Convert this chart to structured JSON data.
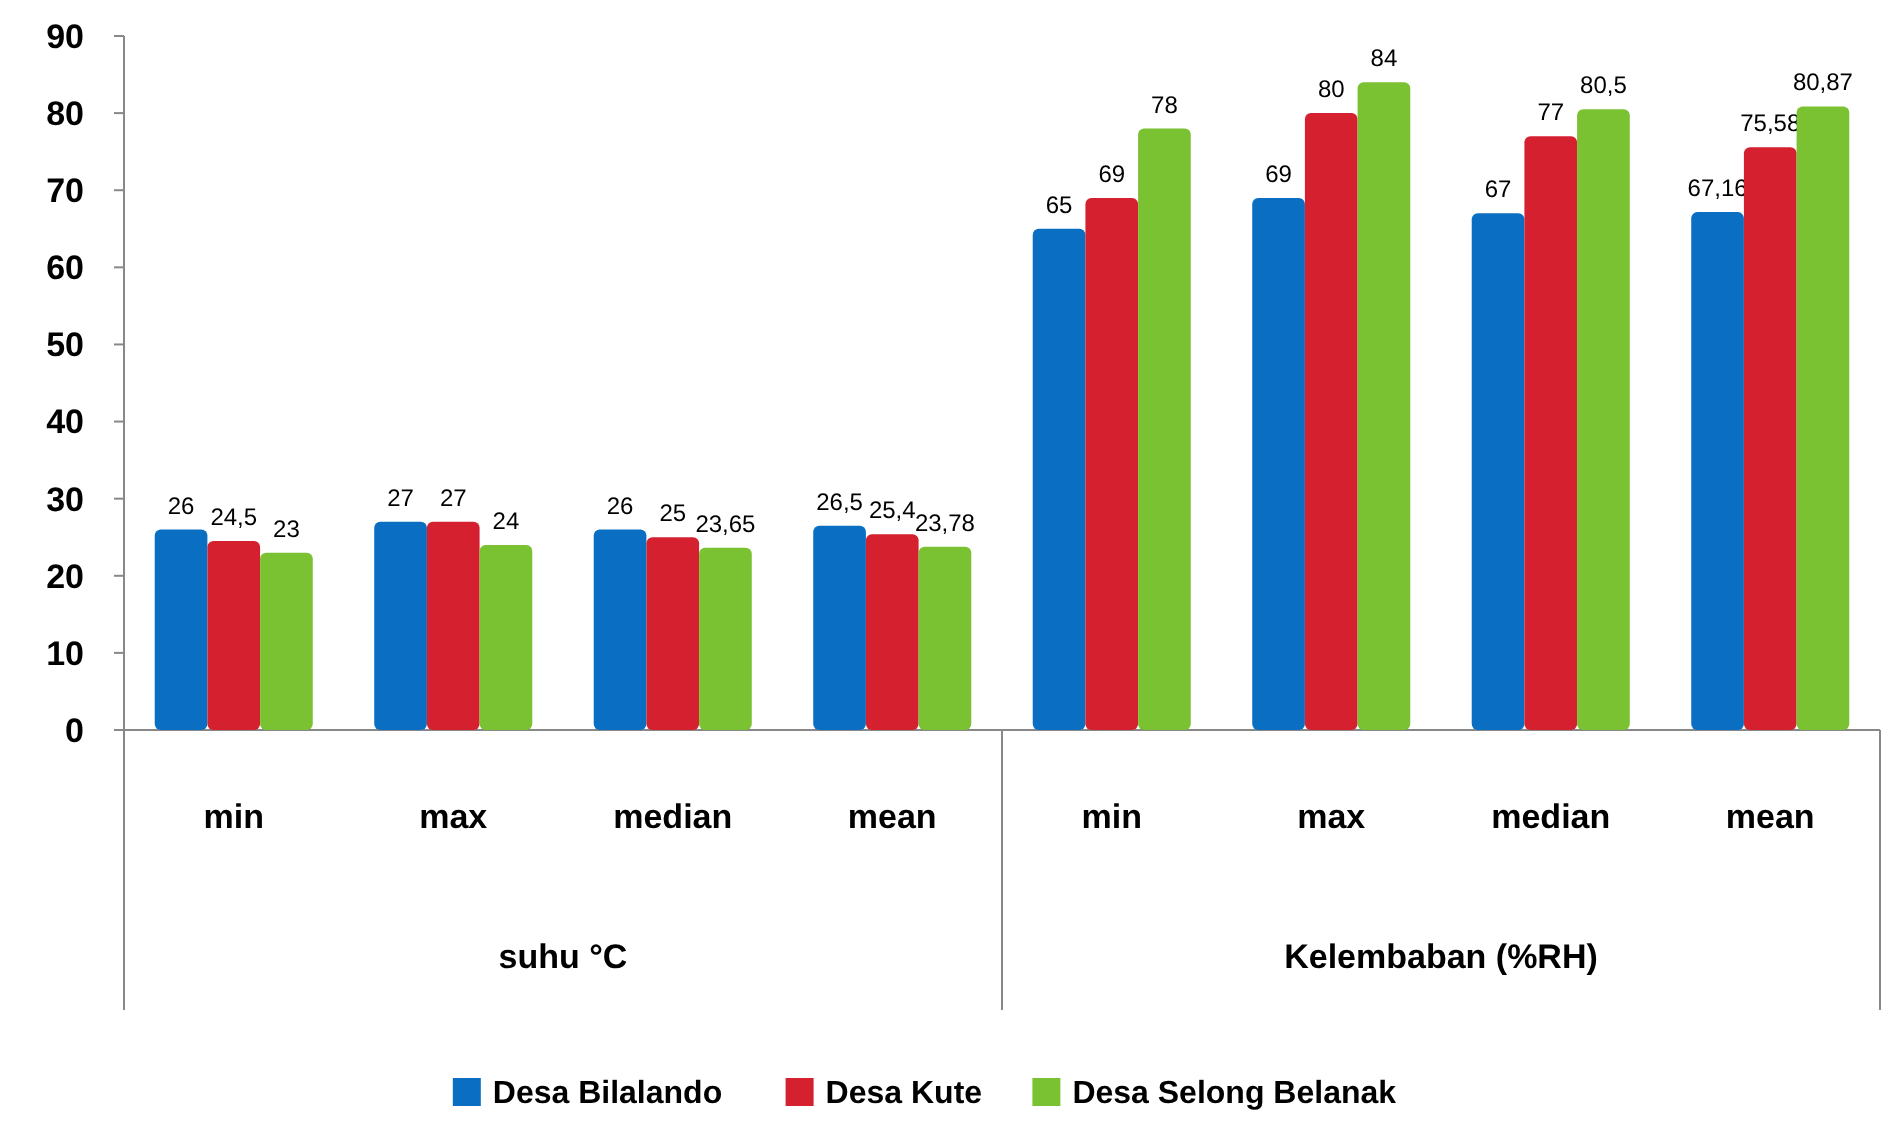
{
  "chart_data": {
    "type": "bar",
    "categories": [
      "min",
      "max",
      "median",
      "mean",
      "min",
      "max",
      "median",
      "mean"
    ],
    "series": [
      {
        "name": "Desa Bilalando",
        "color": "#0a6fc2",
        "values": [
          26,
          27,
          26,
          26.5,
          65,
          69,
          67,
          67.16
        ],
        "value_labels": [
          "26",
          "27",
          "26",
          "26,5",
          "65",
          "69",
          "67",
          "67,16"
        ]
      },
      {
        "name": "Desa Kute",
        "color": "#d4202f",
        "values": [
          24.5,
          27,
          25,
          25.4,
          69,
          80,
          77,
          75.58
        ],
        "value_labels": [
          "24,5",
          "27",
          "25",
          "25,4",
          "69",
          "80",
          "77",
          "75,58"
        ]
      },
      {
        "name": "Desa Selong Belanak",
        "color": "#7ac231",
        "values": [
          23,
          24,
          23.65,
          23.78,
          78,
          84,
          80.5,
          80.87
        ],
        "value_labels": [
          "23",
          "24",
          "23,65",
          "23,78",
          "78",
          "84",
          "80,5",
          "80,87"
        ]
      }
    ],
    "annotations": [
      "suhu °C",
      "Kelembaban (%RH)"
    ],
    "ylim": [
      0,
      90
    ],
    "yticks": [
      0,
      10,
      20,
      30,
      40,
      50,
      60,
      70,
      80,
      90
    ],
    "grid": false,
    "legend": "bottom"
  }
}
